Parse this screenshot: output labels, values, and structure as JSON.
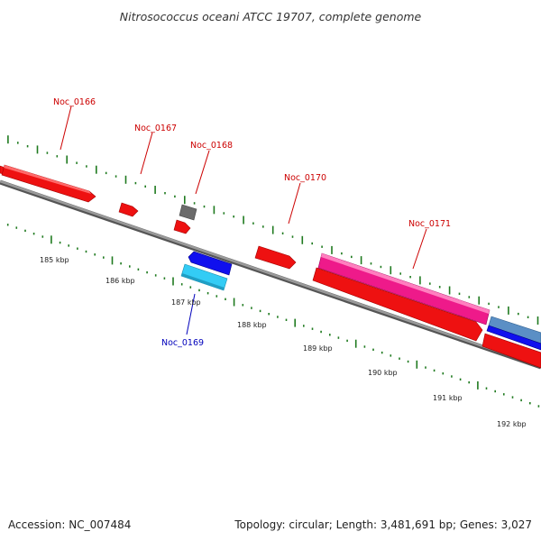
{
  "title": "Nitrosococcus oceani ATCC 19707, complete genome",
  "accession": "Accession: NC_007484",
  "stats": "Topology: circular; Length: 3,481,691 bp; Genes: 3,027",
  "colors": {
    "backbone": "#8c8c8c",
    "tick_dots": "#1f7a1f",
    "label_red": "#cc0000",
    "label_blue": "#0000bb",
    "gene_red": "#ee1111",
    "gene_magenta": "#ee1a8a",
    "gene_blue": "#1010ee",
    "gene_cyan": "#33ccf5",
    "gene_gray": "#6b6b6b",
    "gene_steel": "#5b8fc5"
  },
  "scale_labels": [
    "185 kbp",
    "186 kbp",
    "187 kbp",
    "188 kbp",
    "189 kbp",
    "190 kbp",
    "191 kbp",
    "192 kbp"
  ],
  "gene_labels": [
    {
      "text": "Noc_0166",
      "color": "red"
    },
    {
      "text": "Noc_0167",
      "color": "red"
    },
    {
      "text": "Noc_0168",
      "color": "red"
    },
    {
      "text": "Noc_0169",
      "color": "blue"
    },
    {
      "text": "Noc_0170",
      "color": "red"
    },
    {
      "text": "Noc_0171",
      "color": "red"
    }
  ],
  "features": [
    {
      "name": "Noc_0166",
      "color": "red",
      "strand": "+"
    },
    {
      "name": "Noc_0167",
      "color": "red",
      "strand": "+"
    },
    {
      "name": "Noc_0168",
      "color": "red",
      "strand": "+"
    },
    {
      "name": "Noc_0168-companion",
      "color": "gray",
      "strand": "+"
    },
    {
      "name": "Noc_0169",
      "color": "cyan",
      "strand": "-"
    },
    {
      "name": "Noc_0169-companion",
      "color": "blue",
      "strand": "-"
    },
    {
      "name": "Noc_0170",
      "color": "red",
      "strand": "+"
    },
    {
      "name": "Noc_0171",
      "color": "magenta",
      "strand": "+"
    },
    {
      "name": "Noc_0171-companion",
      "color": "red",
      "strand": "+"
    },
    {
      "name": "edge-feature-steel",
      "color": "steel",
      "strand": "+"
    },
    {
      "name": "edge-feature-blue",
      "color": "blue",
      "strand": "+"
    },
    {
      "name": "edge-feature-red",
      "color": "red",
      "strand": "+"
    }
  ]
}
